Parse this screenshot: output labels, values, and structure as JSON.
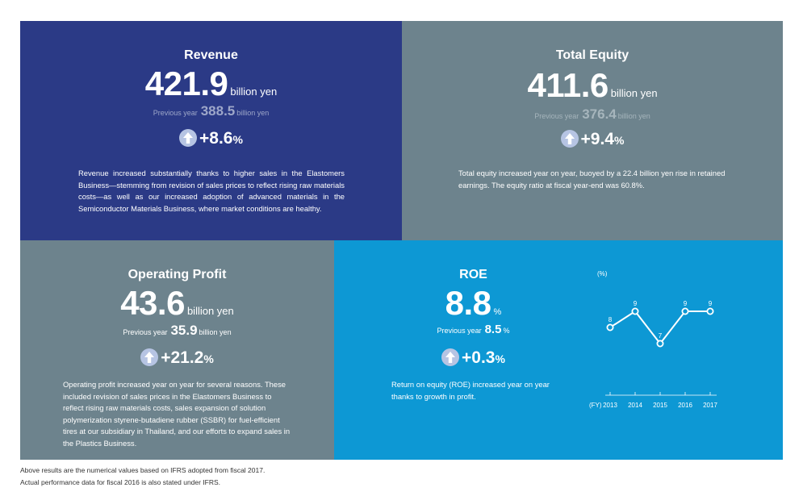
{
  "revenue": {
    "title": "Revenue",
    "value": "421.9",
    "unit": "billion yen",
    "prev_label": "Previous year",
    "prev_value": "388.5",
    "prev_unit": "billion yen",
    "change": "+8.6",
    "change_unit": "%",
    "description": "Revenue increased substantially thanks to higher sales in the Elastomers Business—stemming from revision of sales prices to reflect rising raw materials costs—as well as our increased adoption of advanced materials in the Semiconductor Materials Business, where market conditions are healthy."
  },
  "equity": {
    "title": "Total Equity",
    "value": "411.6",
    "unit": "billion yen",
    "prev_label": "Previous year",
    "prev_value": "376.4",
    "prev_unit": "billion yen",
    "change": "+9.4",
    "change_unit": "%",
    "description": "Total equity increased year on year, buoyed by a 22.4 billion yen rise in retained earnings. The equity ratio at fiscal year-end was 60.8%."
  },
  "operating": {
    "title": "Operating Profit",
    "value": "43.6",
    "unit": "billion yen",
    "prev_label": "Previous year",
    "prev_value": "35.9",
    "prev_unit": "billion yen",
    "change": "+21.2",
    "change_unit": "%",
    "description": "Operating profit increased year on year for several reasons. These included revision of sales prices in the Elastomers Business to reflect rising raw materials costs, sales expansion of solution polymerization styrene-butadiene rubber (SSBR) for fuel-efficient tires at our subsidiary in Thailand, and our efforts to expand sales in the Plastics Business."
  },
  "roe": {
    "title": "ROE",
    "value": "8.8",
    "unit": "%",
    "prev_label": "Previous year",
    "prev_value": "8.5",
    "prev_unit": "%",
    "change": "+0.3",
    "change_unit": "%",
    "description": "Return on equity (ROE) increased year on year thanks to growth in profit."
  },
  "chart_data": {
    "type": "line",
    "ylabel": "(%)",
    "xlabel": "(FY)",
    "categories": [
      "2013",
      "2014",
      "2015",
      "2016",
      "2017"
    ],
    "values": [
      8,
      9,
      7,
      9,
      9
    ],
    "data_labels": [
      "8",
      "9",
      "7",
      "9",
      "9"
    ],
    "ylim": [
      6,
      10
    ],
    "grid": false,
    "color": "#ffffff"
  },
  "footnotes": [
    "Above results are the numerical values based on IFRS adopted from fiscal 2017.",
    "Actual performance data for fiscal 2016 is also stated under IFRS."
  ],
  "colors": {
    "revenue_bg": "#2b3a86",
    "equity_bg": "#6d838d",
    "operating_bg": "#6d838d",
    "roe_bg": "#0d98d4"
  },
  "icons": {
    "change": "up-arrow-icon"
  }
}
